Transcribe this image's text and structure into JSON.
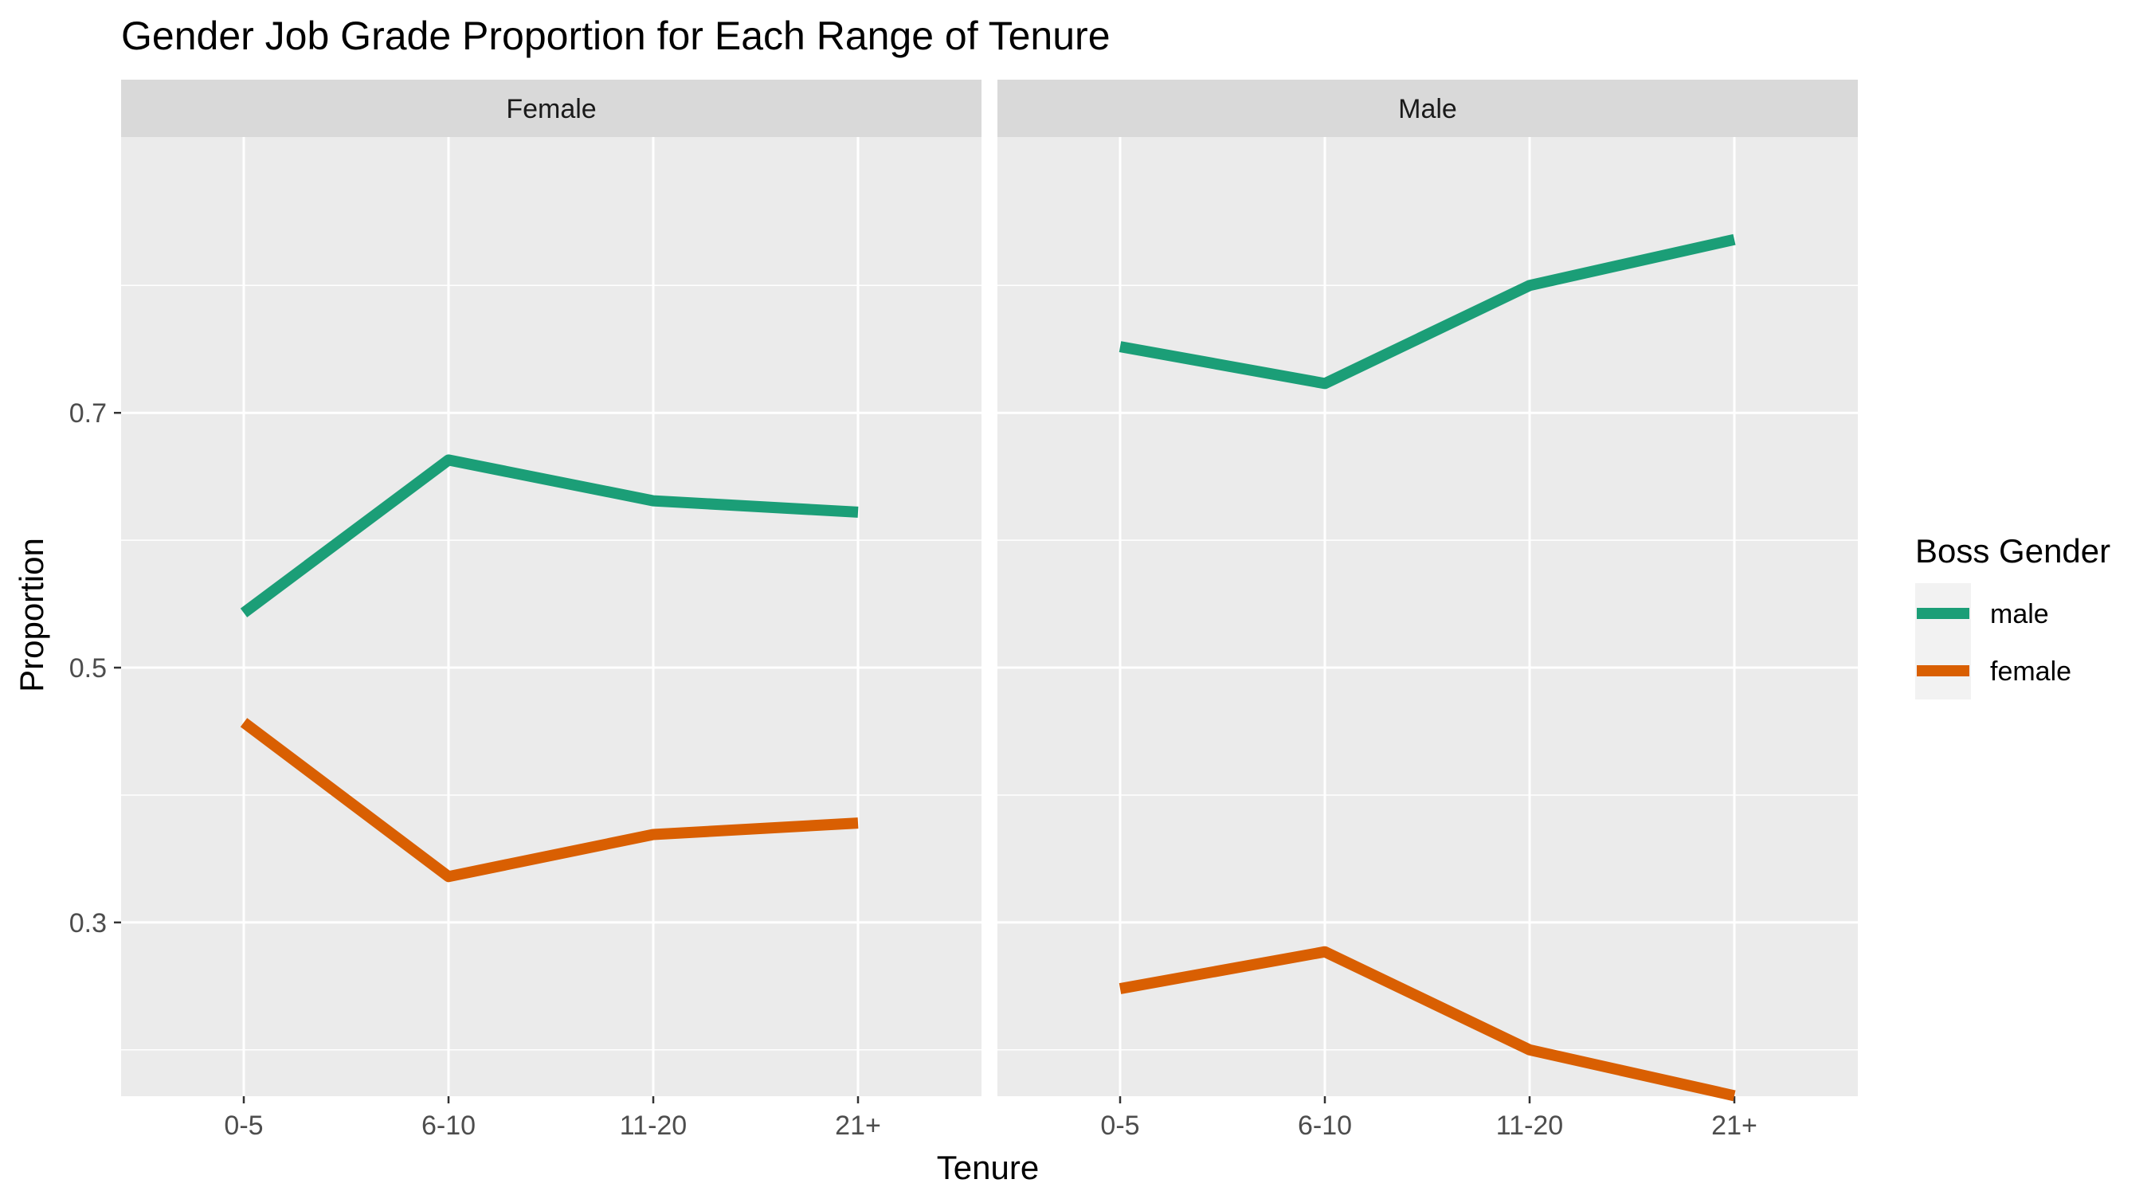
{
  "chart_data": {
    "type": "line",
    "title": "Gender Job Grade Proportion for Each Range of Tenure",
    "xlabel": "Tenure",
    "ylabel": "Proportion",
    "ylim": [
      0.1636,
      0.9165
    ],
    "yticks": [
      0.3,
      0.5,
      0.7
    ],
    "ytick_labels": [
      "0.3",
      "0.5",
      "0.7"
    ],
    "grid": true,
    "categories": [
      "0-5",
      "6-10",
      "11-20",
      "21+"
    ],
    "legend": {
      "title": "Boss Gender",
      "position": "right",
      "entries": [
        {
          "label": "male",
          "color": "#1b9e77"
        },
        {
          "label": "female",
          "color": "#d95f02"
        }
      ]
    },
    "panels": [
      {
        "label": "Female",
        "series": [
          {
            "name": "male",
            "color": "#1b9e77",
            "values": [
              0.543,
              0.663,
              0.631,
              0.622
            ]
          },
          {
            "name": "female",
            "color": "#d95f02",
            "values": [
              0.457,
              0.336,
              0.369,
              0.378
            ]
          }
        ]
      },
      {
        "label": "Male",
        "series": [
          {
            "name": "male",
            "color": "#1b9e77",
            "values": [
              0.752,
              0.723,
              0.8,
              0.836
            ]
          },
          {
            "name": "female",
            "color": "#d95f02",
            "values": [
              0.248,
              0.277,
              0.2,
              0.164
            ]
          }
        ]
      }
    ]
  }
}
